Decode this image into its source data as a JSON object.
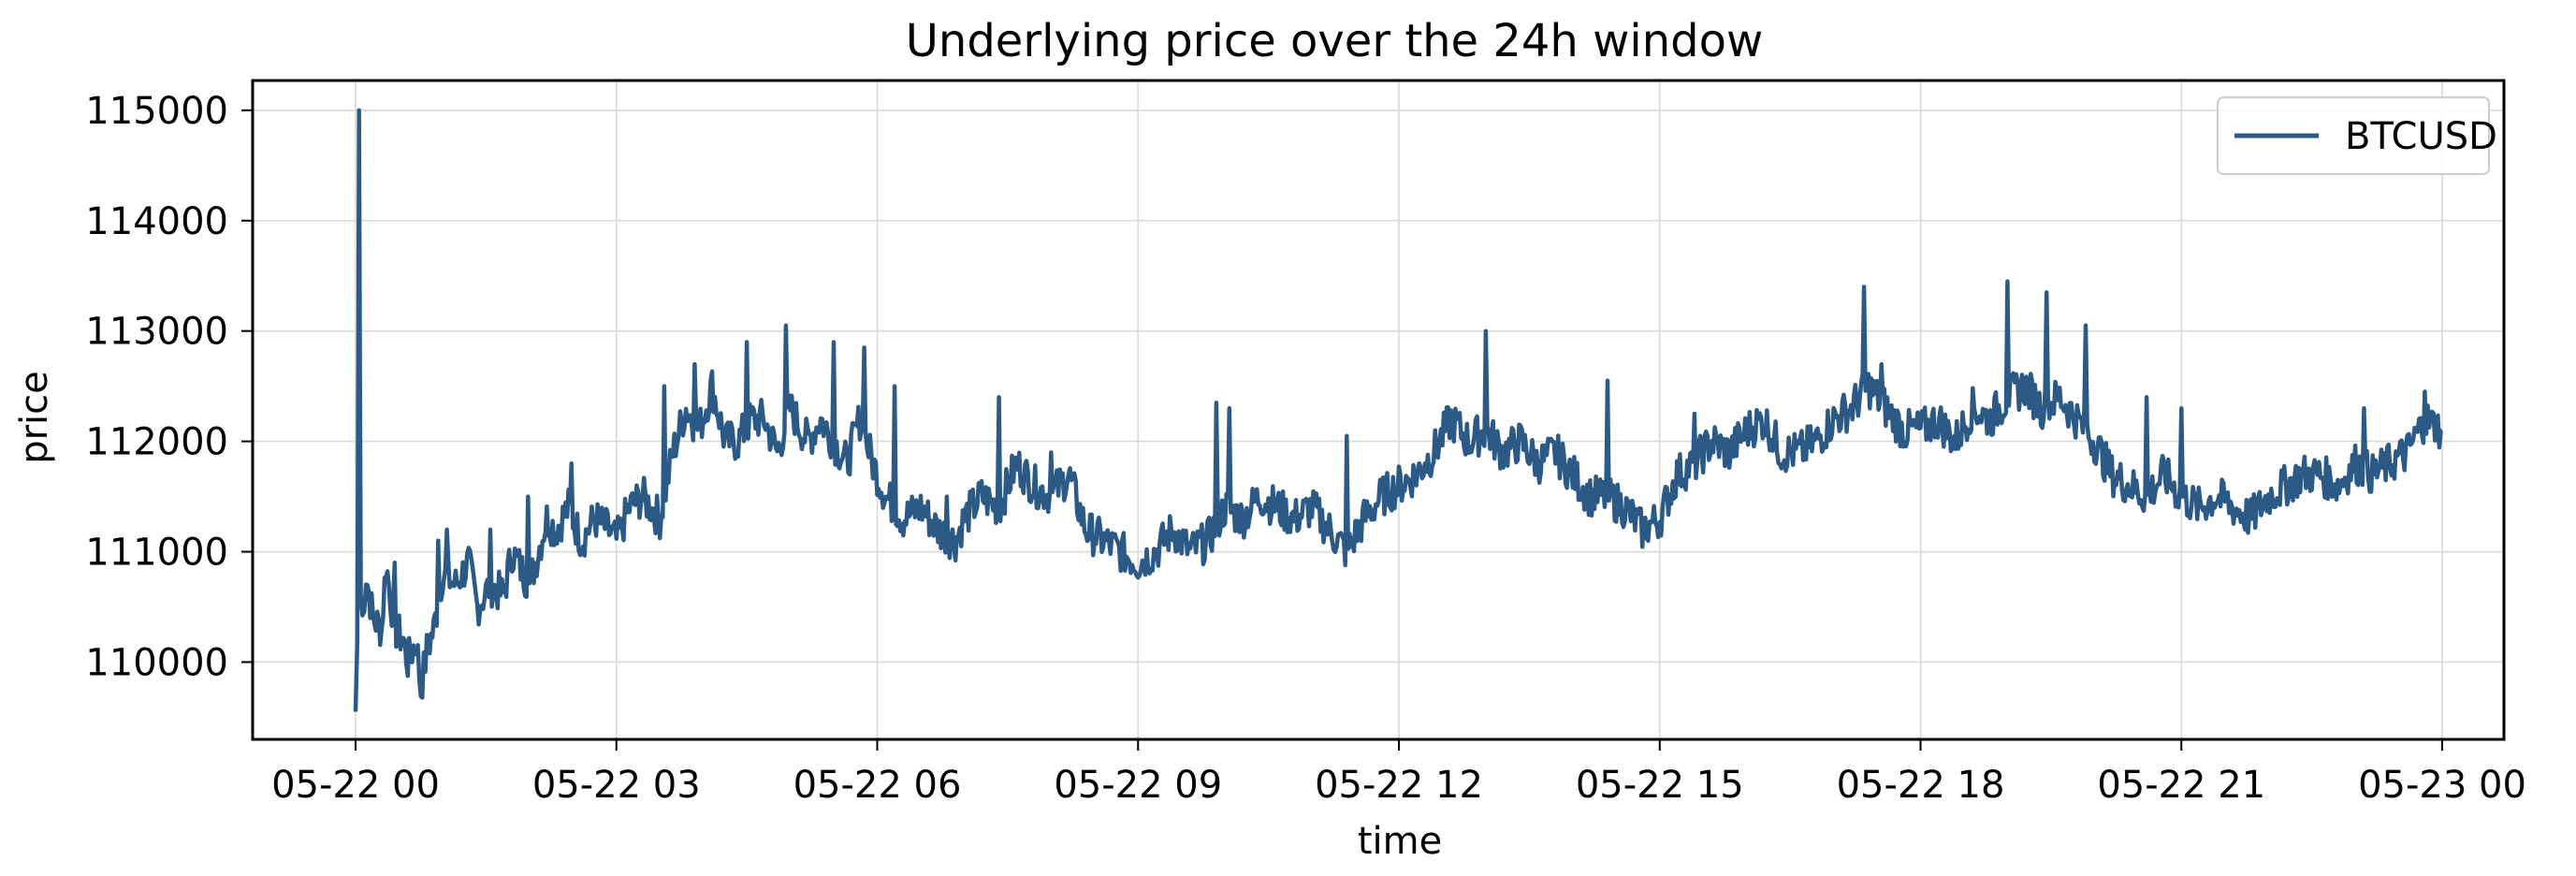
{
  "chart_data": {
    "type": "line",
    "title": "Underlying price over the 24h window",
    "xlabel": "time",
    "ylabel": "price",
    "x_range": [
      "05-22 00",
      "05-23 00"
    ],
    "ylim": [
      109300,
      115270
    ],
    "x_ticks": [
      {
        "label": "05-22 00",
        "hour": 0
      },
      {
        "label": "05-22 03",
        "hour": 3
      },
      {
        "label": "05-22 06",
        "hour": 6
      },
      {
        "label": "05-22 09",
        "hour": 9
      },
      {
        "label": "05-22 12",
        "hour": 12
      },
      {
        "label": "05-22 15",
        "hour": 15
      },
      {
        "label": "05-22 18",
        "hour": 18
      },
      {
        "label": "05-22 21",
        "hour": 21
      },
      {
        "label": "05-23 00",
        "hour": 24
      }
    ],
    "y_ticks": [
      {
        "label": "110000",
        "value": 110000
      },
      {
        "label": "111000",
        "value": 111000
      },
      {
        "label": "112000",
        "value": 112000
      },
      {
        "label": "113000",
        "value": 113000
      },
      {
        "label": "114000",
        "value": 114000
      },
      {
        "label": "115000",
        "value": 115000
      }
    ],
    "grid": true,
    "legend_position": "top-right",
    "series": [
      {
        "name": "BTCUSD",
        "color": "#2c5a86",
        "points": [
          [
            0.0,
            109550
          ],
          [
            0.02,
            110200
          ],
          [
            0.04,
            115000
          ],
          [
            0.06,
            110600
          ],
          [
            0.08,
            110400
          ],
          [
            0.12,
            110800
          ],
          [
            0.2,
            110400
          ],
          [
            0.3,
            110300
          ],
          [
            0.35,
            110900
          ],
          [
            0.45,
            110300
          ],
          [
            0.55,
            110200
          ],
          [
            0.6,
            110000
          ],
          [
            0.7,
            110200
          ],
          [
            0.75,
            109750
          ],
          [
            0.82,
            110100
          ],
          [
            0.9,
            110300
          ],
          [
            1.0,
            110800
          ],
          [
            1.15,
            110700
          ],
          [
            1.3,
            110900
          ],
          [
            1.4,
            110500
          ],
          [
            1.55,
            110700
          ],
          [
            1.7,
            110600
          ],
          [
            1.8,
            111000
          ],
          [
            2.0,
            110700
          ],
          [
            2.1,
            111000
          ],
          [
            2.2,
            111300
          ],
          [
            2.3,
            111200
          ],
          [
            2.45,
            111400
          ],
          [
            2.6,
            111100
          ],
          [
            2.75,
            111300
          ],
          [
            2.9,
            111200
          ],
          [
            3.0,
            111100
          ],
          [
            3.15,
            111400
          ],
          [
            3.3,
            111500
          ],
          [
            3.5,
            111300
          ],
          [
            3.65,
            111900
          ],
          [
            3.8,
            112300
          ],
          [
            3.95,
            112100
          ],
          [
            4.1,
            112500
          ],
          [
            4.25,
            112000
          ],
          [
            4.4,
            112000
          ],
          [
            4.55,
            112200
          ],
          [
            4.7,
            112200
          ],
          [
            4.85,
            111900
          ],
          [
            5.0,
            112300
          ],
          [
            5.2,
            112000
          ],
          [
            5.35,
            112200
          ],
          [
            5.5,
            112000
          ],
          [
            5.65,
            111800
          ],
          [
            5.8,
            112200
          ],
          [
            5.95,
            111800
          ],
          [
            6.1,
            111500
          ],
          [
            6.3,
            111300
          ],
          [
            6.5,
            111400
          ],
          [
            6.7,
            111200
          ],
          [
            6.9,
            111100
          ],
          [
            7.0,
            111300
          ],
          [
            7.2,
            111500
          ],
          [
            7.4,
            111400
          ],
          [
            7.6,
            111800
          ],
          [
            7.8,
            111600
          ],
          [
            8.0,
            111500
          ],
          [
            8.2,
            111700
          ],
          [
            8.4,
            111200
          ],
          [
            8.6,
            111100
          ],
          [
            8.8,
            111000
          ],
          [
            9.0,
            110900
          ],
          [
            9.2,
            111000
          ],
          [
            9.4,
            111200
          ],
          [
            9.6,
            111000
          ],
          [
            9.8,
            111100
          ],
          [
            10.0,
            111400
          ],
          [
            10.2,
            111300
          ],
          [
            10.4,
            111500
          ],
          [
            10.6,
            111400
          ],
          [
            10.8,
            111300
          ],
          [
            11.0,
            111400
          ],
          [
            11.2,
            111200
          ],
          [
            11.4,
            111000
          ],
          [
            11.6,
            111300
          ],
          [
            11.8,
            111500
          ],
          [
            12.0,
            111600
          ],
          [
            12.2,
            111700
          ],
          [
            12.4,
            111900
          ],
          [
            12.6,
            112200
          ],
          [
            12.8,
            112000
          ],
          [
            13.0,
            112100
          ],
          [
            13.2,
            111900
          ],
          [
            13.4,
            112000
          ],
          [
            13.6,
            111800
          ],
          [
            13.8,
            111900
          ],
          [
            14.0,
            111700
          ],
          [
            14.2,
            111500
          ],
          [
            14.4,
            111500
          ],
          [
            14.6,
            111400
          ],
          [
            14.8,
            111200
          ],
          [
            15.0,
            111300
          ],
          [
            15.2,
            111700
          ],
          [
            15.4,
            111800
          ],
          [
            15.6,
            112000
          ],
          [
            15.8,
            111900
          ],
          [
            16.0,
            112100
          ],
          [
            16.2,
            112200
          ],
          [
            16.4,
            111900
          ],
          [
            16.6,
            111900
          ],
          [
            16.8,
            112000
          ],
          [
            17.0,
            112200
          ],
          [
            17.2,
            112300
          ],
          [
            17.4,
            112500
          ],
          [
            17.6,
            112300
          ],
          [
            17.8,
            112100
          ],
          [
            18.0,
            112100
          ],
          [
            18.2,
            112200
          ],
          [
            18.4,
            112000
          ],
          [
            18.6,
            112300
          ],
          [
            18.8,
            112200
          ],
          [
            19.0,
            112400
          ],
          [
            19.2,
            112500
          ],
          [
            19.4,
            112300
          ],
          [
            19.6,
            112400
          ],
          [
            19.8,
            112200
          ],
          [
            20.0,
            112000
          ],
          [
            20.2,
            111700
          ],
          [
            20.4,
            111600
          ],
          [
            20.6,
            111500
          ],
          [
            20.8,
            111700
          ],
          [
            21.0,
            111500
          ],
          [
            21.2,
            111400
          ],
          [
            21.4,
            111500
          ],
          [
            21.6,
            111400
          ],
          [
            21.8,
            111300
          ],
          [
            22.0,
            111500
          ],
          [
            22.2,
            111600
          ],
          [
            22.4,
            111700
          ],
          [
            22.6,
            111700
          ],
          [
            22.8,
            111600
          ],
          [
            23.0,
            111800
          ],
          [
            23.2,
            111700
          ],
          [
            23.4,
            111800
          ],
          [
            23.6,
            111900
          ],
          [
            23.8,
            112200
          ],
          [
            24.0,
            112100
          ]
        ],
        "spikes": [
          [
            0.45,
            110900
          ],
          [
            0.95,
            111100
          ],
          [
            1.05,
            111200
          ],
          [
            1.55,
            111200
          ],
          [
            1.98,
            111500
          ],
          [
            2.48,
            111800
          ],
          [
            3.05,
            111300
          ],
          [
            3.55,
            112500
          ],
          [
            3.9,
            112700
          ],
          [
            4.5,
            112900
          ],
          [
            4.95,
            113050
          ],
          [
            5.5,
            112900
          ],
          [
            5.85,
            112850
          ],
          [
            6.2,
            112500
          ],
          [
            6.8,
            111500
          ],
          [
            7.4,
            112400
          ],
          [
            8.0,
            111900
          ],
          [
            9.9,
            112350
          ],
          [
            10.05,
            112300
          ],
          [
            11.4,
            112050
          ],
          [
            12.3,
            111800
          ],
          [
            13.0,
            113000
          ],
          [
            14.4,
            112550
          ],
          [
            15.4,
            112250
          ],
          [
            16.8,
            112100
          ],
          [
            17.35,
            113400
          ],
          [
            17.55,
            112700
          ],
          [
            19.0,
            113450
          ],
          [
            19.45,
            113350
          ],
          [
            19.9,
            113050
          ],
          [
            21.0,
            112300
          ],
          [
            20.6,
            112400
          ],
          [
            23.1,
            112300
          ],
          [
            23.8,
            112450
          ]
        ]
      }
    ]
  }
}
